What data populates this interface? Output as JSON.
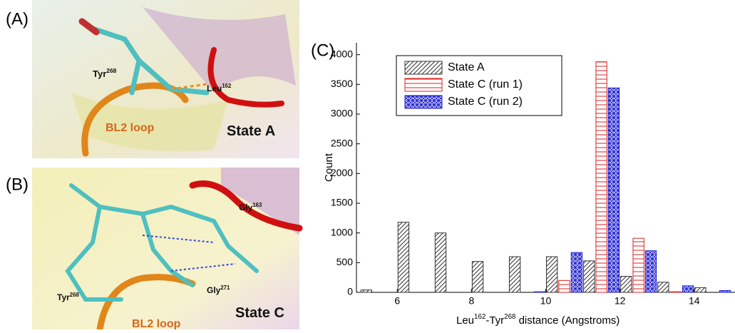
{
  "panels": [
    {
      "tag": "(A)",
      "labels": [
        {
          "parts": [
            "Tyr",
            "268"
          ],
          "color": "#111111"
        },
        {
          "parts": [
            "Leu",
            "162"
          ],
          "color": "#111111"
        },
        {
          "parts": [
            "BL2 loop"
          ],
          "color": "#d2691e"
        },
        {
          "parts": [
            "State A"
          ],
          "color": "#111111"
        }
      ]
    },
    {
      "tag": "(B)",
      "labels": [
        {
          "parts": [
            "Gly",
            "163"
          ],
          "color": "#111111"
        },
        {
          "parts": [
            "Tyr",
            "268"
          ],
          "color": "#111111"
        },
        {
          "parts": [
            "Gly",
            "271"
          ],
          "color": "#111111"
        },
        {
          "parts": [
            "State C"
          ],
          "color": "#111111"
        },
        {
          "parts": [
            "BL2 loop"
          ],
          "color": "#d2691e"
        }
      ]
    }
  ],
  "chart_data": {
    "type": "histogram",
    "tag": "(C)",
    "y_label": "Count",
    "x_label": [
      "Leu",
      "162",
      "-Tyr",
      "268",
      " distance (Angstroms)"
    ],
    "bins": [
      5,
      6,
      7,
      8,
      9,
      10,
      11,
      12,
      13,
      14,
      15
    ],
    "series": [
      {
        "name": "State A",
        "color": "#333333",
        "values": [
          40,
          1180,
          1000,
          520,
          600,
          600,
          530,
          270,
          170,
          80
        ]
      },
      {
        "name": "State C (run 1)",
        "color": "#e02020",
        "values": [
          0,
          0,
          0,
          0,
          0,
          200,
          3880,
          910,
          10,
          0
        ]
      },
      {
        "name": "State C (run 2)",
        "color": "#2020d0",
        "values": [
          0,
          0,
          0,
          0,
          10,
          670,
          3440,
          700,
          110,
          30
        ]
      }
    ],
    "xlim": [
      4.9,
      15.1
    ],
    "ylim": [
      0,
      4200
    ],
    "xticks": [
      6,
      8,
      10,
      12,
      14
    ],
    "yticks": [
      0,
      500,
      1000,
      1500,
      2000,
      2500,
      3000,
      3500,
      4000
    ]
  }
}
